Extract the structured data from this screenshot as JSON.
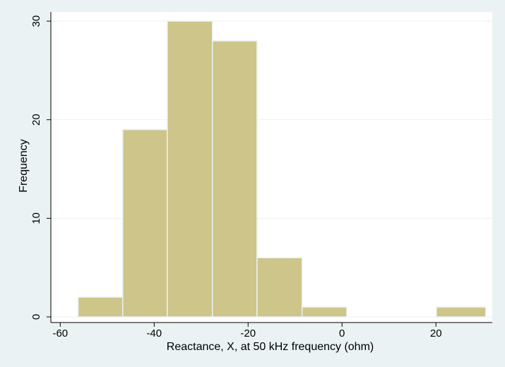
{
  "chart_data": {
    "type": "bar",
    "subtype": "histogram",
    "xlabel": "Reactance, X, at 50 kHz frequency (ohm)",
    "ylabel": "Frequency",
    "xlim": [
      -62,
      32
    ],
    "ylim": [
      0,
      30
    ],
    "xticks": [
      -60,
      -40,
      -20,
      0,
      20
    ],
    "xtick_labels": [
      "-60",
      "-40",
      "-20",
      "0",
      "20"
    ],
    "yticks": [
      0,
      10,
      20,
      30
    ],
    "ytick_labels": [
      "0",
      "10",
      "20",
      "30"
    ],
    "grid": "horizontal",
    "legend": "none",
    "bins": [
      {
        "x0": -56.2,
        "x1": -46.7,
        "count": 2
      },
      {
        "x0": -46.7,
        "x1": -37.2,
        "count": 19
      },
      {
        "x0": -37.2,
        "x1": -27.6,
        "count": 30
      },
      {
        "x0": -27.6,
        "x1": -18.1,
        "count": 28
      },
      {
        "x0": -18.1,
        "x1": -8.5,
        "count": 6
      },
      {
        "x0": -8.5,
        "x1": 1.0,
        "count": 1
      },
      {
        "x0": 1.0,
        "x1": 10.6,
        "count": 0
      },
      {
        "x0": 10.6,
        "x1": 20.1,
        "count": 0
      },
      {
        "x0": 20.1,
        "x1": 30.6,
        "count": 1
      }
    ],
    "colors": {
      "bar_fill": "#cdc589",
      "bar_edge": "#eaf2f3",
      "plot_background": "#ffffff",
      "page_background": "#eaf2f3",
      "grid": "#eaf2f3",
      "axis": "#000000"
    }
  }
}
